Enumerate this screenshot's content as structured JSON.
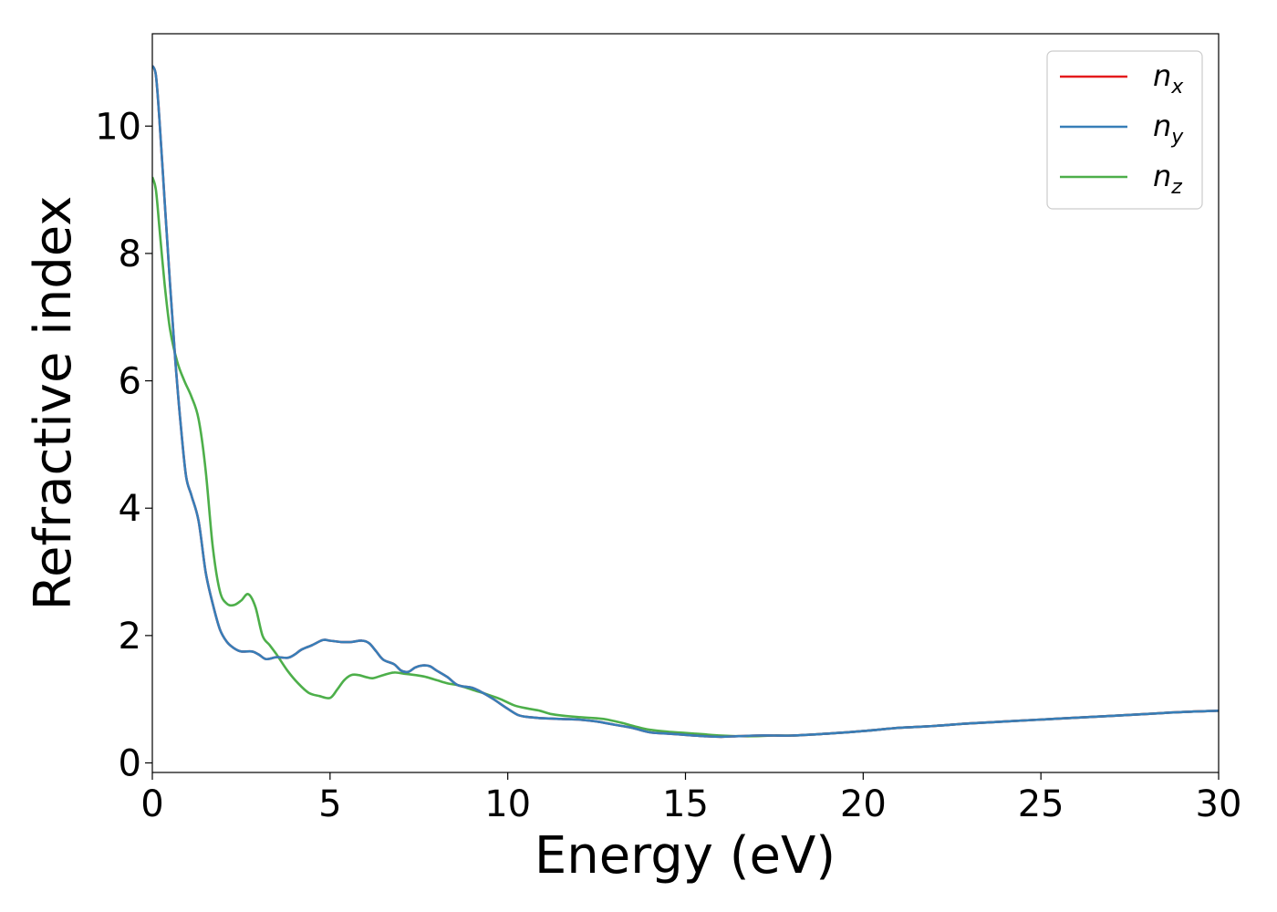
{
  "chart_data": {
    "type": "line",
    "xlabel": "Energy (eV)",
    "ylabel": "Refractive index",
    "xlim": [
      0,
      30
    ],
    "ylim": [
      -0.15,
      11.45
    ],
    "xticks": [
      0,
      5,
      10,
      15,
      20,
      25,
      30
    ],
    "yticks": [
      0,
      2,
      4,
      6,
      8,
      10
    ],
    "grid": false,
    "legend_position": "top-right",
    "colors": {
      "nx": "#e41a1c",
      "ny": "#377eb8",
      "nz": "#4daf4a"
    },
    "series": [
      {
        "name": "n",
        "subscript": "x",
        "color": "#e41a1c",
        "x": [
          0,
          0.1,
          0.2,
          0.35,
          0.5,
          0.65,
          0.8,
          0.95,
          1.1,
          1.3,
          1.5,
          1.7,
          1.9,
          2.1,
          2.3,
          2.5,
          2.8,
          3.0,
          3.2,
          3.5,
          3.8,
          4.0,
          4.2,
          4.5,
          4.8,
          5.0,
          5.3,
          5.6,
          5.9,
          6.1,
          6.3,
          6.5,
          6.8,
          7.0,
          7.2,
          7.4,
          7.6,
          7.8,
          8.0,
          8.3,
          8.6,
          9.0,
          9.3,
          9.6,
          10.0,
          10.3,
          10.6,
          11.0,
          11.5,
          12.0,
          12.5,
          13.0,
          13.5,
          14.0,
          14.5,
          15.0,
          15.5,
          16.0,
          16.5,
          17.0,
          17.5,
          18.0,
          19.0,
          20.0,
          21.0,
          22.0,
          23.0,
          24.0,
          25.0,
          26.0,
          27.0,
          28.0,
          29.0,
          30.0
        ],
        "y": [
          10.95,
          10.8,
          10.1,
          8.8,
          7.5,
          6.3,
          5.3,
          4.5,
          4.2,
          3.8,
          3.0,
          2.5,
          2.1,
          1.9,
          1.8,
          1.75,
          1.75,
          1.7,
          1.63,
          1.66,
          1.65,
          1.7,
          1.78,
          1.85,
          1.93,
          1.92,
          1.9,
          1.9,
          1.92,
          1.88,
          1.75,
          1.62,
          1.55,
          1.45,
          1.43,
          1.5,
          1.53,
          1.52,
          1.45,
          1.35,
          1.22,
          1.18,
          1.1,
          1.0,
          0.85,
          0.75,
          0.72,
          0.7,
          0.69,
          0.68,
          0.65,
          0.6,
          0.55,
          0.48,
          0.46,
          0.44,
          0.42,
          0.41,
          0.42,
          0.43,
          0.43,
          0.43,
          0.46,
          0.5,
          0.55,
          0.58,
          0.62,
          0.65,
          0.68,
          0.71,
          0.74,
          0.77,
          0.8,
          0.82
        ]
      },
      {
        "name": "n",
        "subscript": "y",
        "color": "#377eb8",
        "x": [
          0,
          0.1,
          0.2,
          0.35,
          0.5,
          0.65,
          0.8,
          0.95,
          1.1,
          1.3,
          1.5,
          1.7,
          1.9,
          2.1,
          2.3,
          2.5,
          2.8,
          3.0,
          3.2,
          3.5,
          3.8,
          4.0,
          4.2,
          4.5,
          4.8,
          5.0,
          5.3,
          5.6,
          5.9,
          6.1,
          6.3,
          6.5,
          6.8,
          7.0,
          7.2,
          7.4,
          7.6,
          7.8,
          8.0,
          8.3,
          8.6,
          9.0,
          9.3,
          9.6,
          10.0,
          10.3,
          10.6,
          11.0,
          11.5,
          12.0,
          12.5,
          13.0,
          13.5,
          14.0,
          14.5,
          15.0,
          15.5,
          16.0,
          16.5,
          17.0,
          17.5,
          18.0,
          19.0,
          20.0,
          21.0,
          22.0,
          23.0,
          24.0,
          25.0,
          26.0,
          27.0,
          28.0,
          29.0,
          30.0
        ],
        "y": [
          10.95,
          10.8,
          10.1,
          8.8,
          7.5,
          6.3,
          5.3,
          4.5,
          4.2,
          3.8,
          3.0,
          2.5,
          2.1,
          1.9,
          1.8,
          1.75,
          1.75,
          1.7,
          1.63,
          1.66,
          1.65,
          1.7,
          1.78,
          1.85,
          1.93,
          1.92,
          1.9,
          1.9,
          1.92,
          1.88,
          1.75,
          1.62,
          1.55,
          1.45,
          1.43,
          1.5,
          1.53,
          1.52,
          1.45,
          1.35,
          1.22,
          1.18,
          1.1,
          1.0,
          0.85,
          0.75,
          0.72,
          0.7,
          0.69,
          0.68,
          0.65,
          0.6,
          0.55,
          0.48,
          0.46,
          0.44,
          0.42,
          0.41,
          0.42,
          0.43,
          0.43,
          0.43,
          0.46,
          0.5,
          0.55,
          0.58,
          0.62,
          0.65,
          0.68,
          0.71,
          0.74,
          0.77,
          0.8,
          0.82
        ]
      },
      {
        "name": "n",
        "subscript": "z",
        "color": "#4daf4a",
        "x": [
          0,
          0.1,
          0.2,
          0.35,
          0.5,
          0.7,
          0.9,
          1.1,
          1.3,
          1.5,
          1.7,
          1.9,
          2.1,
          2.3,
          2.5,
          2.7,
          2.9,
          3.1,
          3.3,
          3.5,
          3.8,
          4.1,
          4.4,
          4.7,
          5.0,
          5.2,
          5.4,
          5.6,
          5.8,
          6.0,
          6.2,
          6.5,
          6.8,
          7.1,
          7.4,
          7.7,
          8.0,
          8.3,
          8.6,
          9.0,
          9.4,
          9.8,
          10.2,
          10.6,
          10.9,
          11.2,
          11.6,
          12.0,
          12.5,
          12.8,
          13.2,
          13.6,
          14.0,
          14.5,
          15.0,
          15.5,
          16.0,
          16.5,
          17.0,
          17.5,
          18.0,
          19.0,
          20.0,
          21.0,
          22.0,
          23.0,
          24.0,
          25.0,
          26.0,
          27.0,
          28.0,
          29.0,
          30.0
        ],
        "y": [
          9.2,
          9.0,
          8.4,
          7.5,
          6.8,
          6.3,
          6.0,
          5.75,
          5.4,
          4.6,
          3.4,
          2.7,
          2.5,
          2.48,
          2.55,
          2.65,
          2.45,
          2.0,
          1.85,
          1.7,
          1.45,
          1.25,
          1.1,
          1.05,
          1.02,
          1.15,
          1.3,
          1.38,
          1.38,
          1.35,
          1.33,
          1.38,
          1.42,
          1.4,
          1.38,
          1.35,
          1.3,
          1.25,
          1.22,
          1.15,
          1.08,
          1.0,
          0.9,
          0.85,
          0.82,
          0.77,
          0.74,
          0.72,
          0.7,
          0.68,
          0.63,
          0.57,
          0.52,
          0.49,
          0.47,
          0.45,
          0.43,
          0.42,
          0.42,
          0.43,
          0.43,
          0.46,
          0.5,
          0.55,
          0.58,
          0.62,
          0.65,
          0.68,
          0.71,
          0.74,
          0.77,
          0.8,
          0.82
        ]
      }
    ]
  }
}
